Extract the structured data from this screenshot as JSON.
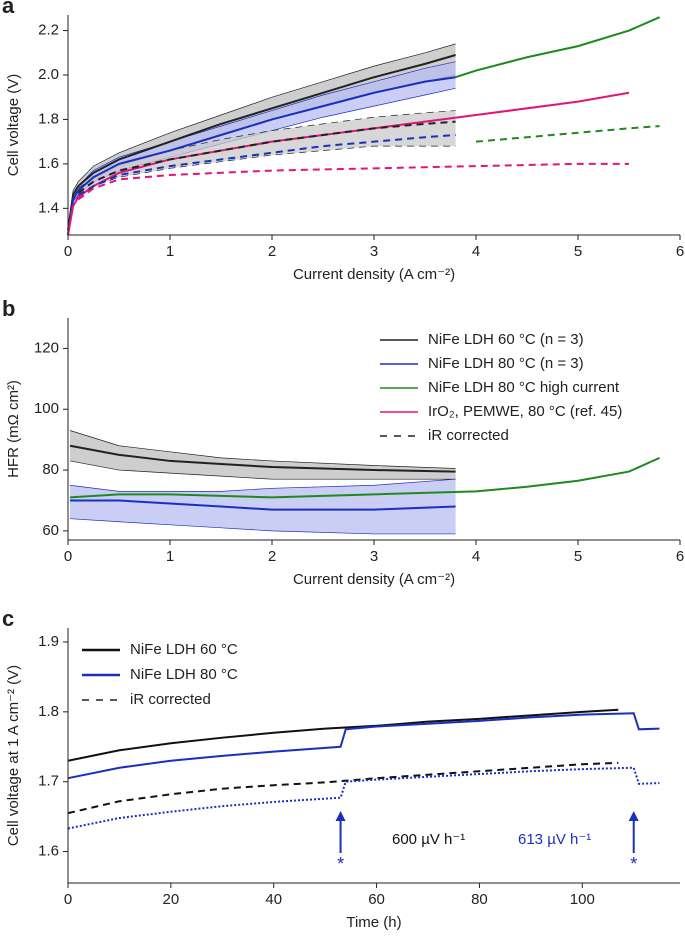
{
  "chart_data": [
    {
      "type": "line",
      "panel_label": "a",
      "xlabel": "Current density (A cm⁻²)",
      "ylabel": "Cell voltage (V)",
      "xlim": [
        0,
        6
      ],
      "ylim": [
        1.28,
        2.27
      ],
      "xticks": [
        0,
        1,
        2,
        3,
        4,
        5,
        6
      ],
      "yticks": [
        1.4,
        1.6,
        1.8,
        {
          "value": 2,
          "label": "2.0"
        },
        2.2
      ],
      "series": [
        {
          "color": "#222222",
          "dash": "solid",
          "x": [
            0,
            0.05,
            0.1,
            0.25,
            0.5,
            1,
            1.5,
            2,
            2.5,
            3,
            3.5,
            3.8
          ],
          "values": [
            1.3,
            1.46,
            1.5,
            1.56,
            1.62,
            1.7,
            1.78,
            1.85,
            1.92,
            1.99,
            2.05,
            2.09
          ],
          "lower": [
            1.29,
            1.44,
            1.48,
            1.53,
            1.59,
            1.66,
            1.73,
            1.8,
            1.86,
            1.92,
            1.97,
            2.0
          ],
          "upper": [
            1.31,
            1.48,
            1.52,
            1.59,
            1.65,
            1.74,
            1.82,
            1.9,
            1.97,
            2.04,
            2.1,
            2.14
          ],
          "band_color": "#bdbdbd"
        },
        {
          "color": "#1a2fbf",
          "dash": "solid",
          "x": [
            0,
            0.05,
            0.1,
            0.25,
            0.5,
            1,
            1.5,
            2,
            2.5,
            3,
            3.5,
            3.8
          ],
          "values": [
            1.28,
            1.44,
            1.48,
            1.54,
            1.6,
            1.66,
            1.73,
            1.8,
            1.86,
            1.92,
            1.97,
            1.99
          ],
          "lower": [
            1.28,
            1.43,
            1.46,
            1.52,
            1.57,
            1.63,
            1.69,
            1.75,
            1.81,
            1.86,
            1.91,
            1.94
          ],
          "upper": [
            1.29,
            1.46,
            1.5,
            1.57,
            1.63,
            1.7,
            1.77,
            1.84,
            1.91,
            1.97,
            2.03,
            2.06
          ],
          "band_color": "#b8bdf0"
        },
        {
          "color": "#1e8a1e",
          "dash": "solid",
          "x": [
            3.8,
            4,
            4.5,
            5,
            5.5,
            5.8
          ],
          "values": [
            1.99,
            2.02,
            2.08,
            2.13,
            2.2,
            2.26
          ]
        },
        {
          "color": "#e0157a",
          "dash": "solid",
          "x": [
            0,
            0.05,
            0.1,
            0.25,
            0.5,
            1,
            2,
            3,
            4,
            5,
            5.5
          ],
          "values": [
            1.28,
            1.41,
            1.45,
            1.5,
            1.56,
            1.62,
            1.7,
            1.76,
            1.82,
            1.88,
            1.92
          ]
        },
        {
          "color": "#222222",
          "dash": "dashed",
          "x": [
            0.1,
            0.25,
            0.5,
            1,
            1.5,
            2,
            2.5,
            3,
            3.5,
            3.8
          ],
          "values": [
            1.47,
            1.52,
            1.57,
            1.62,
            1.66,
            1.7,
            1.73,
            1.76,
            1.78,
            1.79
          ],
          "lower": [
            1.45,
            1.5,
            1.54,
            1.58,
            1.61,
            1.64,
            1.66,
            1.68,
            1.68,
            1.68
          ],
          "upper": [
            1.49,
            1.54,
            1.6,
            1.66,
            1.71,
            1.75,
            1.78,
            1.81,
            1.83,
            1.84
          ],
          "band_color": "#c9c9c9"
        },
        {
          "color": "#1a2fbf",
          "dash": "dashed",
          "x": [
            0.1,
            0.25,
            0.5,
            1,
            1.5,
            2,
            2.5,
            3,
            3.5,
            3.8
          ],
          "values": [
            1.46,
            1.5,
            1.55,
            1.59,
            1.62,
            1.65,
            1.68,
            1.7,
            1.72,
            1.73
          ]
        },
        {
          "color": "#1e8a1e",
          "dash": "dashed",
          "x": [
            4,
            4.5,
            5,
            5.5,
            5.8
          ],
          "values": [
            1.7,
            1.72,
            1.74,
            1.76,
            1.77
          ]
        },
        {
          "color": "#e0157a",
          "dash": "dashed",
          "x": [
            0.1,
            0.25,
            0.5,
            1,
            2,
            3,
            4,
            5,
            5.5
          ],
          "values": [
            1.44,
            1.49,
            1.53,
            1.55,
            1.57,
            1.58,
            1.59,
            1.6,
            1.6
          ]
        }
      ]
    },
    {
      "type": "line",
      "panel_label": "b",
      "xlabel": "Current density (A cm⁻²)",
      "ylabel": "HFR (mΩ cm²)",
      "xlim": [
        0,
        6
      ],
      "ylim": [
        57,
        130
      ],
      "xticks": [
        0,
        1,
        2,
        3,
        4,
        5,
        6
      ],
      "yticks": [
        60,
        80,
        100,
        120
      ],
      "legend": "upper right",
      "legend_note": "iR corrected",
      "series": [
        {
          "name": "NiFe LDH 60 °C (n = 3)",
          "color": "#222222",
          "dash": "solid",
          "x": [
            0.02,
            0.5,
            1,
            1.5,
            2,
            3,
            3.8
          ],
          "values": [
            88,
            85,
            83,
            82,
            81,
            80,
            79.5
          ],
          "lower": [
            83,
            80,
            79,
            78,
            77,
            77,
            77
          ],
          "upper": [
            93,
            88,
            86,
            84,
            83,
            81.5,
            80.5
          ],
          "band_color": "#bdbdbd"
        },
        {
          "name": "NiFe LDH 80 °C (n = 3)",
          "color": "#1a2fbf",
          "dash": "solid",
          "x": [
            0.02,
            0.5,
            1,
            1.5,
            2,
            3,
            3.8
          ],
          "values": [
            70,
            70,
            69,
            68,
            67,
            67,
            68
          ],
          "lower": [
            64,
            63,
            62,
            61,
            60,
            59,
            59
          ],
          "upper": [
            75,
            73,
            73,
            73,
            74,
            75,
            77
          ],
          "band_color": "#b8bdf0"
        },
        {
          "name": "NiFe LDH 80 °C high current",
          "color": "#1e8a1e",
          "dash": "solid",
          "x": [
            0.02,
            0.5,
            1,
            2,
            3,
            4,
            4.5,
            5,
            5.5,
            5.8
          ],
          "values": [
            71,
            72,
            72,
            71,
            72,
            73,
            74.5,
            76.5,
            79.5,
            84
          ]
        },
        {
          "name": "IrO₂, PEMWE, 80 °C (ref. 45)",
          "color": "#e0157a",
          "dash": "solid",
          "x": [],
          "values": []
        }
      ]
    },
    {
      "type": "line",
      "panel_label": "c",
      "xlabel": "Time (h)",
      "ylabel": "Cell voltage at 1 A cm⁻² (V)",
      "xlim": [
        0,
        119
      ],
      "ylim": [
        1.555,
        1.92
      ],
      "xticks": [
        0,
        20,
        40,
        60,
        80,
        100
      ],
      "yticks": [
        1.6,
        1.7,
        1.8,
        1.9
      ],
      "legend": "upper left",
      "legend_note": "iR corrected",
      "series": [
        {
          "name": "NiFe LDH 60 °C",
          "color": "#111111",
          "dash": "solid",
          "x": [
            0,
            10,
            20,
            30,
            40,
            50,
            60,
            70,
            80,
            90,
            100,
            107
          ],
          "values": [
            1.73,
            1.745,
            1.755,
            1.763,
            1.77,
            1.776,
            1.78,
            1.786,
            1.79,
            1.795,
            1.8,
            1.803
          ]
        },
        {
          "name": "NiFe LDH 80 °C",
          "color": "#1a2fbf",
          "dash": "solid",
          "x": [
            0,
            10,
            20,
            30,
            40,
            53,
            54,
            60,
            70,
            80,
            90,
            100,
            110,
            111,
            115
          ],
          "values": [
            1.705,
            1.72,
            1.73,
            1.737,
            1.743,
            1.75,
            1.775,
            1.779,
            1.783,
            1.787,
            1.792,
            1.796,
            1.798,
            1.775,
            1.776
          ]
        },
        {
          "color": "#111111",
          "dash": "dashed",
          "x": [
            0,
            10,
            20,
            30,
            40,
            50,
            60,
            70,
            80,
            90,
            100,
            107
          ],
          "values": [
            1.655,
            1.672,
            1.682,
            1.69,
            1.695,
            1.699,
            1.705,
            1.71,
            1.715,
            1.72,
            1.725,
            1.727
          ]
        },
        {
          "color": "#1a2fbf",
          "dash": "dotted",
          "x": [
            0,
            10,
            20,
            30,
            40,
            53,
            54,
            60,
            70,
            80,
            90,
            100,
            110,
            111,
            115
          ],
          "values": [
            1.633,
            1.648,
            1.657,
            1.665,
            1.671,
            1.677,
            1.7,
            1.703,
            1.707,
            1.711,
            1.715,
            1.718,
            1.72,
            1.697,
            1.698
          ]
        }
      ],
      "annotations": [
        {
          "text": "600 µV h⁻¹",
          "color": "#111111"
        },
        {
          "text": "613 µV h⁻¹",
          "color": "#1a2fbf"
        }
      ],
      "arrows": [
        {
          "x": 53,
          "label": "*"
        },
        {
          "x": 110,
          "label": "*"
        }
      ]
    }
  ]
}
